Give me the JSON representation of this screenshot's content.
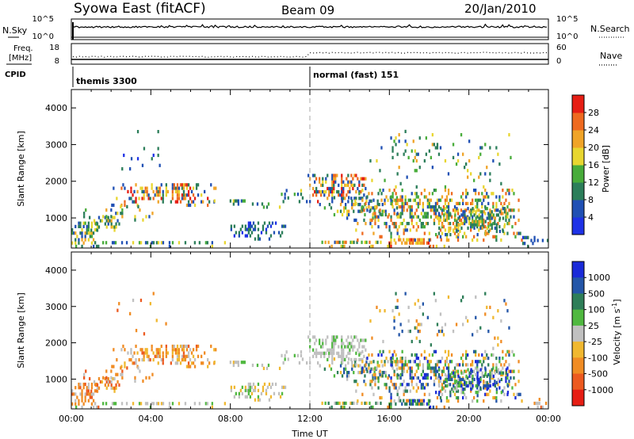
{
  "header": {
    "station": "Syowa East (fitACF)",
    "beam": "Beam 09",
    "date": "20/Jan/2010"
  },
  "labels": {
    "nsky": "N.Sky",
    "nsearch": "N.Search",
    "freq_line1": "Freq.",
    "freq_line2": "[MHz]",
    "nave": "Nave",
    "cpid": "CPID",
    "y_top": "10^5",
    "y_bottom": "10^0",
    "freq_top": "18",
    "freq_bottom": "8",
    "nave_top": "60",
    "nave_bottom": "0"
  },
  "cpid_modes": [
    {
      "label": "themis 3300",
      "start_hour": 0
    },
    {
      "label": "normal (fast) 151",
      "start_hour": 12
    }
  ],
  "chart_data": [
    {
      "type": "heatmap",
      "name": "power",
      "ylabel": "Slant Range [km]",
      "yticks": [
        "1000",
        "2000",
        "3000",
        "4000"
      ],
      "ylim": [
        180,
        4500
      ],
      "xlim": [
        0,
        24
      ],
      "colorbar": {
        "label": "Power [dB]",
        "ticks": [
          "4",
          "8",
          "12",
          "16",
          "20",
          "24",
          "28"
        ],
        "colors": [
          "#1e32e6",
          "#2050b4",
          "#2c7e5a",
          "#48ac3a",
          "#e8d630",
          "#f0a428",
          "#ee6a20",
          "#e61e14"
        ]
      }
    },
    {
      "type": "heatmap",
      "name": "velocity",
      "ylabel": "Slant Range [km]",
      "yticks": [
        "1000",
        "2000",
        "3000",
        "4000"
      ],
      "ylim": [
        180,
        4500
      ],
      "xlim": [
        0,
        24
      ],
      "xlabel": "Time UT",
      "xticks": [
        "00:00",
        "04:00",
        "08:00",
        "12:00",
        "16:00",
        "20:00",
        "00:00"
      ],
      "colorbar": {
        "label": "Velocity [m s^-1]",
        "ticks": [
          "1000",
          "500",
          "100",
          "25",
          "-25",
          "-100",
          "-500",
          "-1000"
        ],
        "colors": [
          "#1a2ad8",
          "#2456a8",
          "#2e7e58",
          "#50b840",
          "#c0c0c0",
          "#f0b830",
          "#f08c24",
          "#ec5a20",
          "#e61e14"
        ]
      }
    }
  ]
}
